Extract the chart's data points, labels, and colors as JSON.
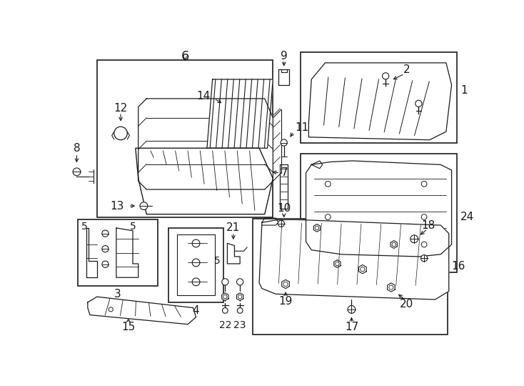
{
  "bg": "#ffffff",
  "lc": "#1a1a1a",
  "figw": 7.34,
  "figh": 5.4,
  "dpi": 100
}
